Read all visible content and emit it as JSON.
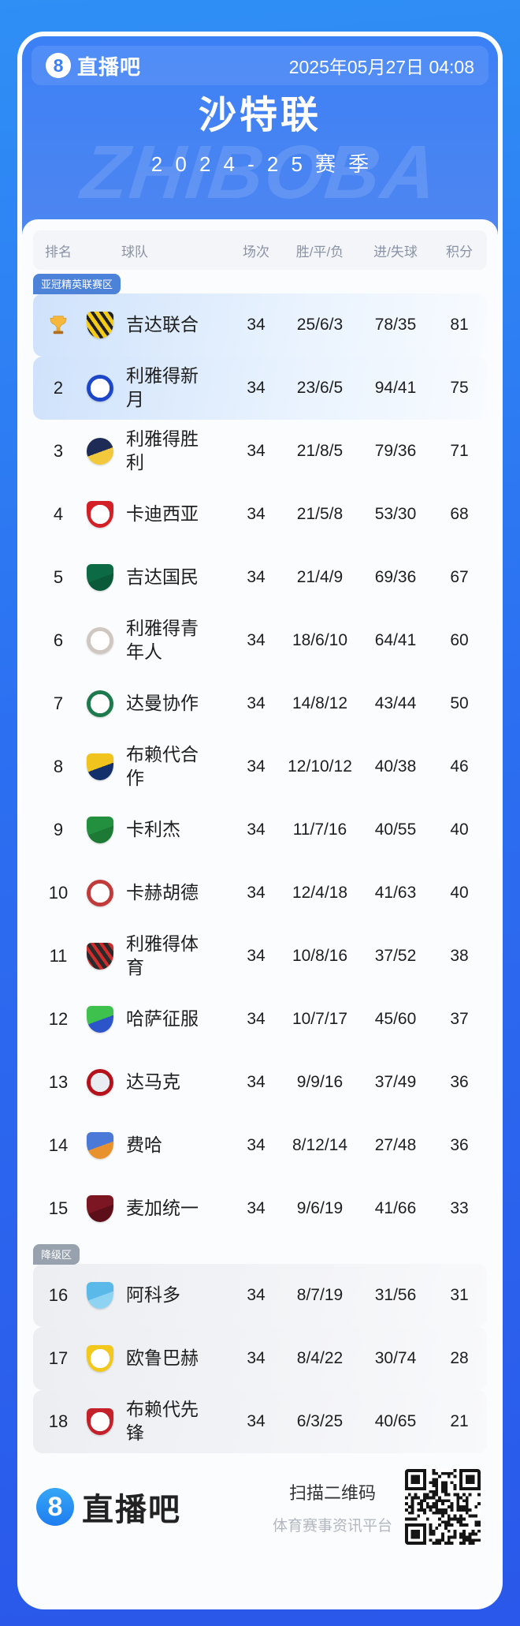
{
  "header": {
    "brand": "直播吧",
    "logo_glyph": "8",
    "datetime": "2025年05月27日 04:08"
  },
  "title": "沙特联",
  "season": "2024-25赛季",
  "watermark": "ZHIBOBA",
  "table": {
    "columns": [
      "排名",
      "球队",
      "场次",
      "胜/平/负",
      "进/失球",
      "积分"
    ],
    "zone_labels": {
      "acl": "亚冠精英联赛区",
      "relegation": "降级区"
    },
    "rows": [
      {
        "rank": "1",
        "trophy": true,
        "zone_badge": "亚冠精英联赛区",
        "highlight": "acl",
        "team": "吉达联合",
        "played": "34",
        "wdl": "25/6/3",
        "goals": "78/35",
        "points": "81",
        "logo": {
          "shape": "shield",
          "style": "stripes",
          "c1": "#f5cc15",
          "c2": "#1f1f1f"
        }
      },
      {
        "rank": "2",
        "highlight": "acl",
        "team": "利雅得新月",
        "played": "34",
        "wdl": "23/6/5",
        "goals": "94/41",
        "points": "75",
        "logo": {
          "shape": "circle",
          "style": "ring",
          "c1": "#1b47c8",
          "c2": "#ffffff"
        }
      },
      {
        "rank": "3",
        "team": "利雅得胜利",
        "played": "34",
        "wdl": "21/8/5",
        "goals": "79/36",
        "points": "71",
        "logo": {
          "shape": "circle",
          "style": "split",
          "c1": "#1d2b56",
          "c2": "#f2c93c"
        }
      },
      {
        "rank": "4",
        "team": "卡迪西亚",
        "played": "34",
        "wdl": "21/5/8",
        "goals": "53/30",
        "points": "68",
        "logo": {
          "shape": "shield",
          "style": "ring",
          "c1": "#d32027",
          "c2": "#ffffff"
        }
      },
      {
        "rank": "5",
        "team": "吉达国民",
        "played": "34",
        "wdl": "21/4/9",
        "goals": "69/36",
        "points": "67",
        "logo": {
          "shape": "shield",
          "style": "split",
          "c1": "#0c6b45",
          "c2": "#0a5a39"
        }
      },
      {
        "rank": "6",
        "team": "利雅得青年人",
        "played": "34",
        "wdl": "18/6/10",
        "goals": "64/41",
        "points": "60",
        "logo": {
          "shape": "circle",
          "style": "ring",
          "c1": "#cfc7c0",
          "c2": "#ffffff"
        }
      },
      {
        "rank": "7",
        "team": "达曼协作",
        "played": "34",
        "wdl": "14/8/12",
        "goals": "43/44",
        "points": "50",
        "logo": {
          "shape": "circle",
          "style": "ring",
          "c1": "#1e7a4c",
          "c2": "#ffffff"
        }
      },
      {
        "rank": "8",
        "team": "布赖代合作",
        "played": "34",
        "wdl": "12/10/12",
        "goals": "40/38",
        "points": "46",
        "logo": {
          "shape": "shield",
          "style": "split",
          "c1": "#f0c41c",
          "c2": "#13306b"
        }
      },
      {
        "rank": "9",
        "team": "卡利杰",
        "played": "34",
        "wdl": "11/7/16",
        "goals": "40/55",
        "points": "40",
        "logo": {
          "shape": "shield",
          "style": "split",
          "c1": "#23903f",
          "c2": "#1c7a34"
        }
      },
      {
        "rank": "10",
        "team": "卡赫胡德",
        "played": "34",
        "wdl": "12/4/18",
        "goals": "41/63",
        "points": "40",
        "logo": {
          "shape": "circle",
          "style": "ring",
          "c1": "#c23b3b",
          "c2": "#ffffff"
        }
      },
      {
        "rank": "11",
        "team": "利雅得体育",
        "played": "34",
        "wdl": "10/8/16",
        "goals": "37/52",
        "points": "38",
        "logo": {
          "shape": "shield",
          "style": "stripes",
          "c1": "#2a2a2a",
          "c2": "#d22b2b"
        }
      },
      {
        "rank": "12",
        "team": "哈萨征服",
        "played": "34",
        "wdl": "10/7/17",
        "goals": "45/60",
        "points": "37",
        "logo": {
          "shape": "shield",
          "style": "split",
          "c1": "#3ec24d",
          "c2": "#2b55c8"
        }
      },
      {
        "rank": "13",
        "team": "达马克",
        "played": "34",
        "wdl": "9/9/16",
        "goals": "37/49",
        "points": "36",
        "logo": {
          "shape": "circle",
          "style": "ring",
          "c1": "#b5121b",
          "c2": "#e9edf2"
        }
      },
      {
        "rank": "14",
        "team": "费哈",
        "played": "34",
        "wdl": "8/12/14",
        "goals": "27/48",
        "points": "36",
        "logo": {
          "shape": "shield",
          "style": "split",
          "c1": "#4a79d8",
          "c2": "#e8922d"
        }
      },
      {
        "rank": "15",
        "team": "麦加统一",
        "played": "34",
        "wdl": "9/6/19",
        "goals": "41/66",
        "points": "33",
        "logo": {
          "shape": "shield",
          "style": "split",
          "c1": "#7c1622",
          "c2": "#5c0f18"
        }
      },
      {
        "rank": "16",
        "zone_badge": "降级区",
        "highlight": "rel",
        "team": "阿科多",
        "played": "34",
        "wdl": "8/7/19",
        "goals": "31/56",
        "points": "31",
        "logo": {
          "shape": "shield",
          "style": "split",
          "c1": "#5ab9e8",
          "c2": "#8fd3f2"
        }
      },
      {
        "rank": "17",
        "highlight": "rel",
        "team": "欧鲁巴赫",
        "played": "34",
        "wdl": "8/4/22",
        "goals": "30/74",
        "points": "28",
        "logo": {
          "shape": "shield",
          "style": "ring",
          "c1": "#f2c81c",
          "c2": "#ffffff"
        }
      },
      {
        "rank": "18",
        "highlight": "rel",
        "team": "布赖代先锋",
        "played": "34",
        "wdl": "6/3/25",
        "goals": "40/65",
        "points": "21",
        "logo": {
          "shape": "shield",
          "style": "ring",
          "c1": "#c4212a",
          "c2": "#ffffff"
        }
      }
    ]
  },
  "footer": {
    "brand": "直播吧",
    "logo_glyph": "8",
    "qr_caption": "扫描二维码",
    "platform_slogan": "体育赛事资讯平台"
  }
}
